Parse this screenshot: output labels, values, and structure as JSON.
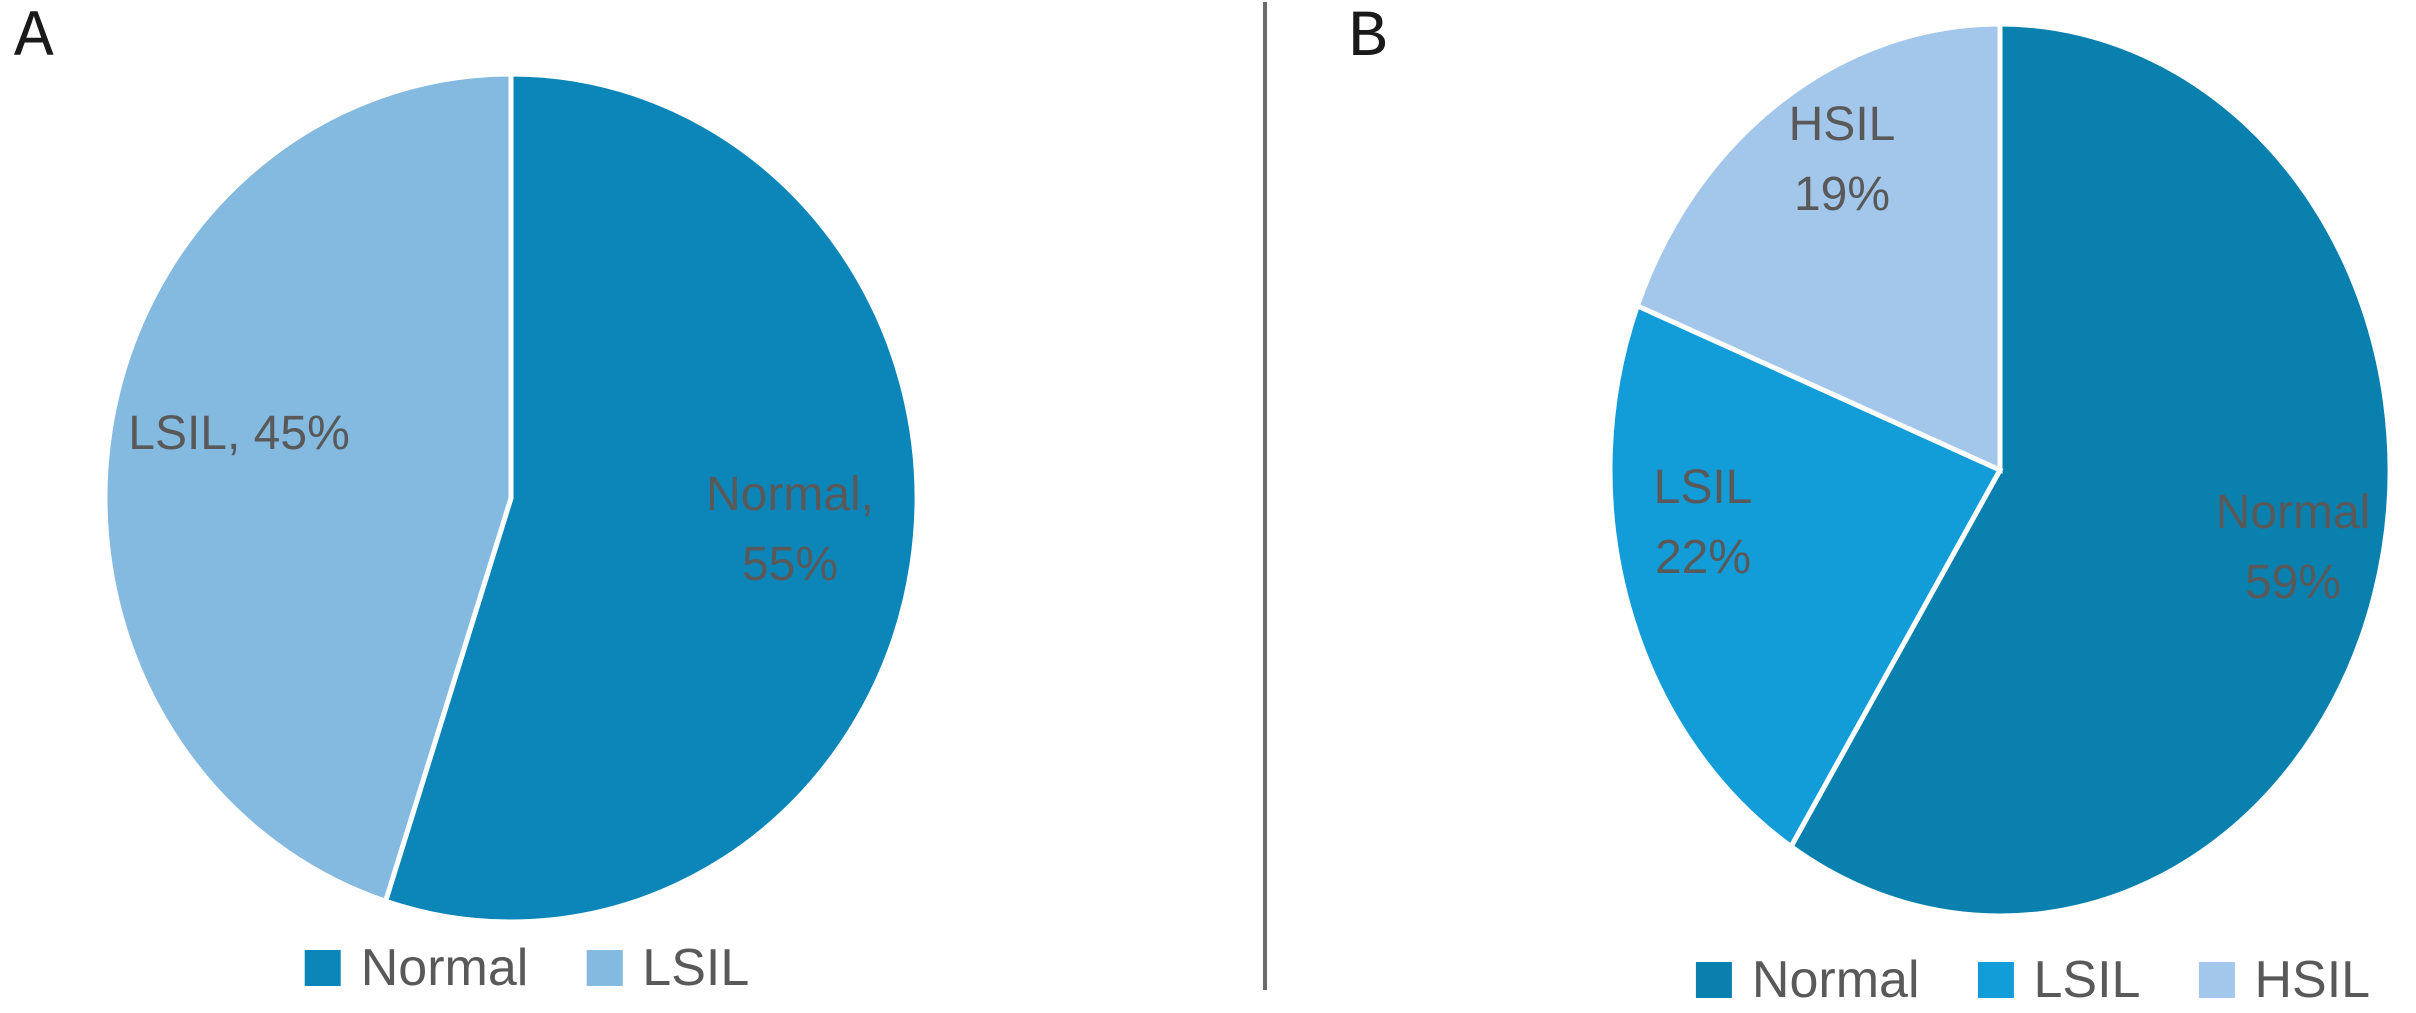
{
  "figure": {
    "background": "#FFFFFF",
    "divider_color": "#6B6B6B",
    "label_text_color": "#595959",
    "panel_letter_color": "#1A1A1A",
    "slice_gap_color": "#FFFFFF"
  },
  "panels": [
    {
      "letter": "A"
    },
    {
      "letter": "B"
    }
  ],
  "chart_data": [
    {
      "type": "pie",
      "panel": "A",
      "title": "",
      "start_angle_deg": 0,
      "direction": "clockwise",
      "legend_position": "bottom",
      "data_labels": "inside",
      "categories": [
        "Normal",
        "LSIL"
      ],
      "values": [
        55,
        45
      ],
      "slices": [
        {
          "label": "Normal",
          "value": 55,
          "color": "#0C86B8",
          "data_label_lines": [
            "Normal,",
            "55%"
          ]
        },
        {
          "label": "LSIL",
          "value": 45,
          "color": "#84B9E0",
          "data_label_lines": [
            "LSIL, 45%"
          ]
        }
      ]
    },
    {
      "type": "pie",
      "panel": "B",
      "title": "",
      "start_angle_deg": 0,
      "direction": "clockwise",
      "legend_position": "bottom",
      "data_labels": "inside",
      "categories": [
        "Normal",
        "LSIL",
        "HSIL"
      ],
      "values": [
        59,
        22,
        19
      ],
      "slices": [
        {
          "label": "Normal",
          "value": 59,
          "color": "#0A80AE",
          "data_label_lines": [
            "Normal",
            "59%"
          ]
        },
        {
          "label": "LSIL",
          "value": 22,
          "color": "#129CD8",
          "data_label_lines": [
            "LSIL",
            "22%"
          ]
        },
        {
          "label": "HSIL",
          "value": 19,
          "color": "#A3C7EA",
          "data_label_lines": [
            "HSIL",
            "19%"
          ]
        }
      ]
    }
  ]
}
